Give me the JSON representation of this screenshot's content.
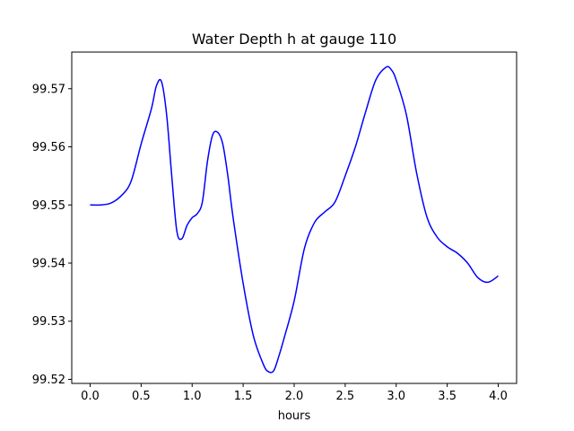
{
  "chart_data": {
    "type": "line",
    "title": "Water Depth h at gauge 110",
    "xlabel": "hours",
    "ylabel": "",
    "xlim": [
      -0.18,
      4.18
    ],
    "ylim": [
      99.5193,
      99.5763
    ],
    "grid": false,
    "xticks": [
      {
        "value": 0.0,
        "label": "0.0"
      },
      {
        "value": 0.5,
        "label": "0.5"
      },
      {
        "value": 1.0,
        "label": "1.0"
      },
      {
        "value": 1.5,
        "label": "1.5"
      },
      {
        "value": 2.0,
        "label": "2.0"
      },
      {
        "value": 2.5,
        "label": "2.5"
      },
      {
        "value": 3.0,
        "label": "3.0"
      },
      {
        "value": 3.5,
        "label": "3.5"
      },
      {
        "value": 4.0,
        "label": "4.0"
      }
    ],
    "yticks": [
      {
        "value": 99.52,
        "label": "99.52"
      },
      {
        "value": 99.53,
        "label": "99.53"
      },
      {
        "value": 99.54,
        "label": "99.54"
      },
      {
        "value": 99.55,
        "label": "99.55"
      },
      {
        "value": 99.56,
        "label": "99.56"
      },
      {
        "value": 99.57,
        "label": "99.57"
      }
    ],
    "series": [
      {
        "color": "#0000ff",
        "x": [
          0.0,
          0.1,
          0.2,
          0.3,
          0.4,
          0.5,
          0.6,
          0.65,
          0.7,
          0.75,
          0.8,
          0.85,
          0.9,
          0.95,
          1.0,
          1.05,
          1.1,
          1.15,
          1.2,
          1.25,
          1.3,
          1.35,
          1.4,
          1.5,
          1.6,
          1.7,
          1.75,
          1.8,
          1.85,
          1.9,
          2.0,
          2.1,
          2.2,
          2.3,
          2.4,
          2.5,
          2.6,
          2.7,
          2.8,
          2.9,
          2.95,
          3.0,
          3.1,
          3.2,
          3.3,
          3.4,
          3.5,
          3.6,
          3.7,
          3.8,
          3.9,
          4.0
        ],
        "y": [
          99.55,
          99.55,
          99.5503,
          99.5515,
          99.554,
          99.5605,
          99.5665,
          99.5705,
          99.5712,
          99.5655,
          99.555,
          99.5455,
          99.5442,
          99.5465,
          99.5478,
          99.5485,
          99.5505,
          99.5575,
          99.562,
          99.5625,
          99.5605,
          99.555,
          99.548,
          99.5365,
          99.5275,
          99.5225,
          99.5213,
          99.5215,
          99.524,
          99.527,
          99.5335,
          99.5425,
          99.547,
          99.5488,
          99.5505,
          99.555,
          99.56,
          99.566,
          99.5715,
          99.5737,
          99.5733,
          99.5715,
          99.5655,
          99.5555,
          99.548,
          99.5445,
          99.5428,
          99.5417,
          99.54,
          99.5375,
          99.5367,
          99.5378
        ]
      }
    ]
  }
}
